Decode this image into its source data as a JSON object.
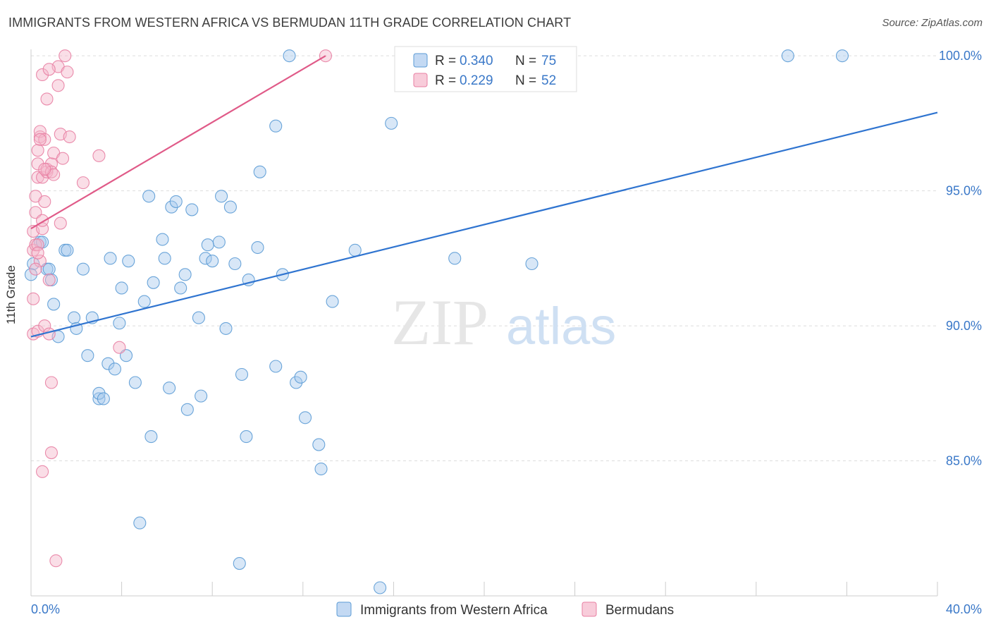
{
  "title": "IMMIGRANTS FROM WESTERN AFRICA VS BERMUDAN 11TH GRADE CORRELATION CHART",
  "source": "Source: ZipAtlas.com",
  "watermark": {
    "zip": "ZIP",
    "atlas": "atlas"
  },
  "colors": {
    "blue": "#5b9bd5",
    "blue_fill": "#a9c9ee",
    "blue_line": "#2f74d0",
    "pink": "#e87fa3",
    "pink_fill": "#f5b6ca",
    "pink_line": "#e05a88",
    "value_text": "#3a78c8",
    "grid": "#dddddd"
  },
  "legend_box": {
    "rows": [
      {
        "r_label": "R =",
        "r_value": "0.340",
        "n_label": "N =",
        "n_value": "75",
        "color": "blue"
      },
      {
        "r_label": "R =",
        "r_value": "0.229",
        "n_label": "N =",
        "n_value": "52",
        "color": "pink"
      }
    ]
  },
  "chart_data": {
    "type": "scatter",
    "title": "IMMIGRANTS FROM WESTERN AFRICA VS BERMUDAN 11TH GRADE CORRELATION CHART",
    "xlabel": "",
    "ylabel": "11th Grade",
    "xlim": [
      0,
      40
    ],
    "ylim": [
      80,
      100.5
    ],
    "x_tick_labels": [
      "0.0%",
      "40.0%"
    ],
    "y_tick_labels": [
      {
        "value": 100,
        "label": "100.0%"
      },
      {
        "value": 95,
        "label": "95.0%"
      },
      {
        "value": 90,
        "label": "90.0%"
      },
      {
        "value": 85,
        "label": "85.0%"
      }
    ],
    "grid": true,
    "legend": "bottom-center",
    "series": [
      {
        "name": "Immigrants from Western Africa",
        "color": "blue",
        "trend": {
          "x": [
            0,
            40
          ],
          "y": [
            89.6,
            97.9
          ]
        },
        "points": [
          [
            0.1,
            92.3
          ],
          [
            0.4,
            93.1
          ],
          [
            0.5,
            93.1
          ],
          [
            0.7,
            92.1
          ],
          [
            0.8,
            92.1
          ],
          [
            0.9,
            91.7
          ],
          [
            1.0,
            90.8
          ],
          [
            1.2,
            89.6
          ],
          [
            1.5,
            92.8
          ],
          [
            1.6,
            92.8
          ],
          [
            1.9,
            90.3
          ],
          [
            2.0,
            89.9
          ],
          [
            2.3,
            92.1
          ],
          [
            2.5,
            88.9
          ],
          [
            2.7,
            90.3
          ],
          [
            3.0,
            87.3
          ],
          [
            3.0,
            87.5
          ],
          [
            3.2,
            87.3
          ],
          [
            3.4,
            88.6
          ],
          [
            3.5,
            92.5
          ],
          [
            3.7,
            88.4
          ],
          [
            3.9,
            90.1
          ],
          [
            4.0,
            91.4
          ],
          [
            4.2,
            88.9
          ],
          [
            4.3,
            92.4
          ],
          [
            4.6,
            87.9
          ],
          [
            4.8,
            82.7
          ],
          [
            5.0,
            90.9
          ],
          [
            5.2,
            94.8
          ],
          [
            5.3,
            85.9
          ],
          [
            5.4,
            91.6
          ],
          [
            5.8,
            93.2
          ],
          [
            5.9,
            92.5
          ],
          [
            6.1,
            87.7
          ],
          [
            6.2,
            94.4
          ],
          [
            6.4,
            94.6
          ],
          [
            6.6,
            91.4
          ],
          [
            6.8,
            91.9
          ],
          [
            6.9,
            86.9
          ],
          [
            7.1,
            94.3
          ],
          [
            7.4,
            90.3
          ],
          [
            7.5,
            87.4
          ],
          [
            7.7,
            92.5
          ],
          [
            7.8,
            93.0
          ],
          [
            8.0,
            92.4
          ],
          [
            8.3,
            93.1
          ],
          [
            8.4,
            94.8
          ],
          [
            8.6,
            89.9
          ],
          [
            8.8,
            94.4
          ],
          [
            9.0,
            92.3
          ],
          [
            9.2,
            81.2
          ],
          [
            9.3,
            88.2
          ],
          [
            9.5,
            85.9
          ],
          [
            9.6,
            91.7
          ],
          [
            10.0,
            92.9
          ],
          [
            10.1,
            95.7
          ],
          [
            10.8,
            97.4
          ],
          [
            10.8,
            88.5
          ],
          [
            11.1,
            91.9
          ],
          [
            11.4,
            100.0
          ],
          [
            11.7,
            87.9
          ],
          [
            11.9,
            88.1
          ],
          [
            12.1,
            86.6
          ],
          [
            12.7,
            85.6
          ],
          [
            12.8,
            84.7
          ],
          [
            13.3,
            90.9
          ],
          [
            14.3,
            92.8
          ],
          [
            15.4,
            80.3
          ],
          [
            15.9,
            97.5
          ],
          [
            16.4,
            100.0
          ],
          [
            18.7,
            92.5
          ],
          [
            22.1,
            92.3
          ],
          [
            33.4,
            100.0
          ],
          [
            35.8,
            100.0
          ],
          [
            0.0,
            91.9
          ]
        ]
      },
      {
        "name": "Bermudans",
        "color": "pink",
        "trend": {
          "x": [
            0,
            13
          ],
          "y": [
            93.6,
            100.0
          ]
        },
        "points": [
          [
            0.1,
            93.5
          ],
          [
            0.1,
            92.8
          ],
          [
            0.1,
            91.0
          ],
          [
            0.1,
            89.7
          ],
          [
            0.2,
            93.0
          ],
          [
            0.2,
            94.2
          ],
          [
            0.2,
            94.8
          ],
          [
            0.3,
            96.0
          ],
          [
            0.3,
            95.5
          ],
          [
            0.3,
            96.5
          ],
          [
            0.3,
            93.0
          ],
          [
            0.3,
            89.8
          ],
          [
            0.4,
            92.4
          ],
          [
            0.4,
            97.0
          ],
          [
            0.4,
            97.2
          ],
          [
            0.5,
            95.5
          ],
          [
            0.5,
            93.6
          ],
          [
            0.5,
            93.9
          ],
          [
            0.5,
            99.3
          ],
          [
            0.5,
            84.6
          ],
          [
            0.6,
            94.6
          ],
          [
            0.6,
            96.9
          ],
          [
            0.6,
            90.0
          ],
          [
            0.7,
            95.7
          ],
          [
            0.7,
            95.8
          ],
          [
            0.7,
            98.4
          ],
          [
            0.8,
            89.7
          ],
          [
            0.8,
            91.7
          ],
          [
            0.9,
            87.9
          ],
          [
            0.9,
            96.0
          ],
          [
            0.9,
            95.7
          ],
          [
            0.9,
            85.3
          ],
          [
            1.0,
            96.4
          ],
          [
            1.0,
            95.6
          ],
          [
            1.1,
            81.3
          ],
          [
            1.2,
            99.6
          ],
          [
            1.2,
            98.9
          ],
          [
            1.3,
            97.1
          ],
          [
            1.3,
            93.8
          ],
          [
            1.4,
            96.2
          ],
          [
            1.5,
            100.0
          ],
          [
            1.6,
            99.4
          ],
          [
            1.7,
            97.0
          ],
          [
            2.3,
            95.3
          ],
          [
            3.0,
            96.3
          ],
          [
            3.9,
            89.2
          ],
          [
            13.0,
            100.0
          ],
          [
            0.2,
            92.1
          ],
          [
            0.3,
            92.7
          ],
          [
            0.4,
            96.9
          ],
          [
            0.6,
            95.8
          ],
          [
            0.8,
            99.5
          ]
        ]
      }
    ]
  },
  "bottom_legend": [
    {
      "label": "Immigrants from Western Africa",
      "color": "blue"
    },
    {
      "label": "Bermudans",
      "color": "pink"
    }
  ]
}
